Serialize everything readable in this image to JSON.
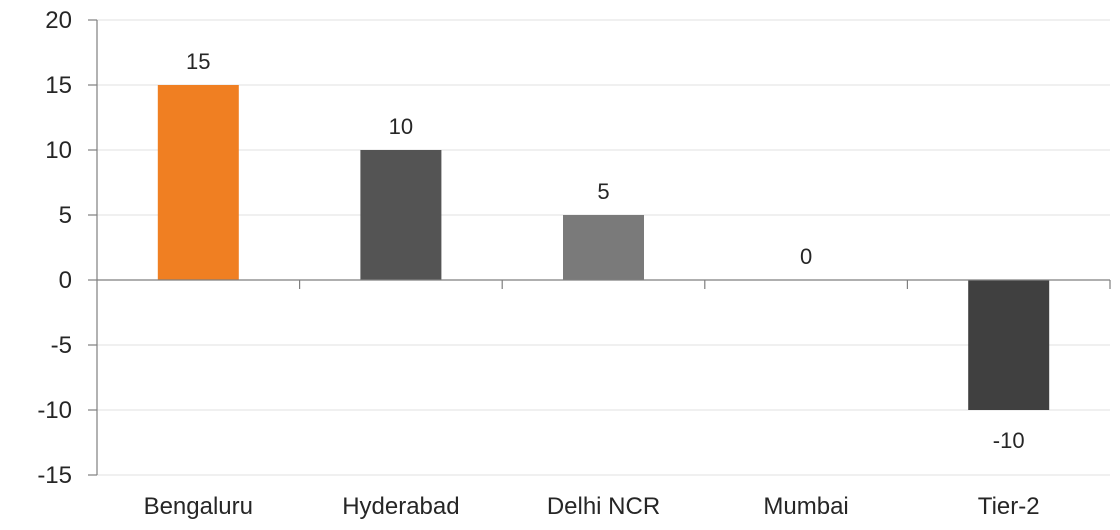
{
  "chart_data": {
    "type": "bar",
    "categories": [
      "Bengaluru",
      "Hyderabad",
      "Delhi NCR",
      "Mumbai",
      "Tier-2"
    ],
    "values": [
      15,
      10,
      5,
      0,
      -10
    ],
    "data_labels": [
      "15",
      "10",
      "5",
      "0",
      "-10"
    ],
    "colors": [
      "#f07f22",
      "#545454",
      "#7a7a7a",
      "#9a9a9a",
      "#404040"
    ],
    "ylim": [
      -15,
      20
    ],
    "yticks": [
      20,
      15,
      10,
      5,
      0,
      -5,
      -10,
      -15
    ],
    "ytick_labels": [
      "20",
      "15",
      "10",
      "5",
      "0",
      "-5",
      "-10",
      "-15"
    ],
    "grid": true,
    "title": "",
    "xlabel": "",
    "ylabel": ""
  }
}
